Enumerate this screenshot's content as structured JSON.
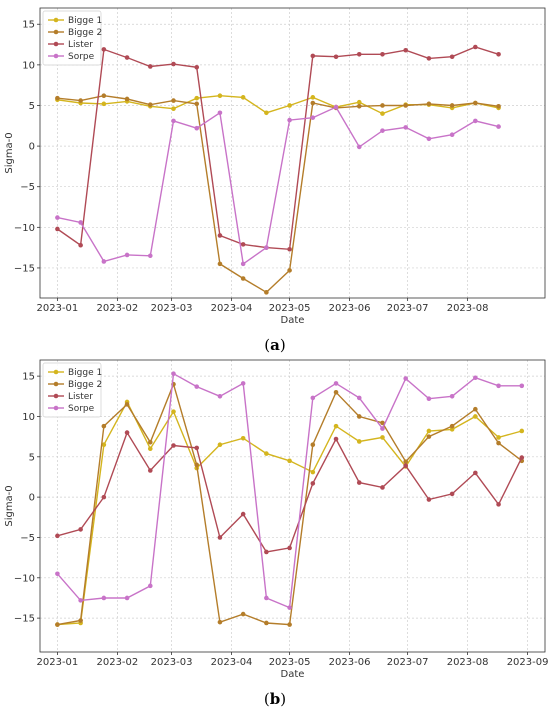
{
  "chart_data": [
    {
      "type": "line",
      "caption": "(a)",
      "xlabel": "Date",
      "ylabel": "Sigma-0",
      "xlim": [
        "2022-12-23",
        "2023-09-10"
      ],
      "ylim": [
        -18.7,
        17
      ],
      "xticks": [
        "2023-01-01",
        "2023-02-01",
        "2023-03-01",
        "2023-04-01",
        "2023-05-01",
        "2023-06-01",
        "2023-07-01",
        "2023-08-01"
      ],
      "xtick_labels": [
        "2023-01",
        "2023-02",
        "2023-03",
        "2023-04",
        "2023-05",
        "2023-06",
        "2023-07",
        "2023-08"
      ],
      "yticks": [
        -15,
        -10,
        -5,
        0,
        5,
        10,
        15
      ],
      "ytick_labels": [
        "−15",
        "−10",
        "−5",
        "0",
        "5",
        "10",
        "15"
      ],
      "grid": true,
      "legend_position": "top-left",
      "x": [
        "2023-01-01",
        "2023-01-13",
        "2023-01-25",
        "2023-02-06",
        "2023-02-18",
        "2023-03-02",
        "2023-03-14",
        "2023-03-26",
        "2023-04-07",
        "2023-04-19",
        "2023-05-01",
        "2023-05-13",
        "2023-05-25",
        "2023-06-06",
        "2023-06-18",
        "2023-06-30",
        "2023-07-12",
        "2023-07-24",
        "2023-08-05",
        "2023-08-17"
      ],
      "series": [
        {
          "name": "Bigge 1",
          "color": "#d4b51e",
          "values": [
            5.7,
            5.3,
            5.2,
            5.5,
            4.9,
            4.6,
            5.9,
            6.2,
            6.0,
            4.1,
            5.0,
            6.0,
            4.8,
            5.4,
            4.0,
            5.1,
            5.1,
            4.7,
            5.3,
            4.7
          ]
        },
        {
          "name": "Bigge 2",
          "color": "#b47d2a",
          "values": [
            5.9,
            5.6,
            6.2,
            5.8,
            5.1,
            5.6,
            5.2,
            -14.5,
            -16.3,
            -18.0,
            -15.3,
            5.3,
            4.7,
            4.9,
            5.0,
            5.0,
            5.2,
            5.0,
            5.3,
            4.9
          ]
        },
        {
          "name": "Lister",
          "color": "#b04a55",
          "values": [
            -10.2,
            -12.2,
            11.9,
            10.9,
            9.8,
            10.1,
            9.7,
            -11.0,
            -12.1,
            -12.5,
            -12.7,
            11.1,
            11.0,
            11.3,
            11.3,
            11.8,
            10.8,
            11.0,
            12.2,
            11.3
          ]
        },
        {
          "name": "Sorpe",
          "color": "#c873c8",
          "values": [
            -8.8,
            -9.4,
            -14.2,
            -13.4,
            -13.5,
            3.1,
            2.2,
            4.1,
            -14.5,
            -12.5,
            3.2,
            3.5,
            4.8,
            -0.1,
            1.9,
            2.3,
            0.9,
            1.4,
            3.1,
            2.4
          ]
        }
      ]
    },
    {
      "type": "line",
      "caption": "(b)",
      "xlabel": "Date",
      "ylabel": "Sigma-0",
      "xlim": [
        "2022-12-23",
        "2023-09-10"
      ],
      "ylim": [
        -19.2,
        17
      ],
      "xticks": [
        "2023-01-01",
        "2023-02-01",
        "2023-03-01",
        "2023-04-01",
        "2023-05-01",
        "2023-06-01",
        "2023-07-01",
        "2023-08-01",
        "2023-09-01"
      ],
      "xtick_labels": [
        "2023-01",
        "2023-02",
        "2023-03",
        "2023-04",
        "2023-05",
        "2023-06",
        "2023-07",
        "2023-08",
        "2023-09"
      ],
      "yticks": [
        -15,
        -10,
        -5,
        0,
        5,
        10,
        15
      ],
      "ytick_labels": [
        "−15",
        "−10",
        "−5",
        "0",
        "5",
        "10",
        "15"
      ],
      "grid": true,
      "legend_position": "top-left",
      "x": [
        "2023-01-01",
        "2023-01-13",
        "2023-01-25",
        "2023-02-06",
        "2023-02-18",
        "2023-03-02",
        "2023-03-14",
        "2023-03-26",
        "2023-04-07",
        "2023-04-19",
        "2023-05-01",
        "2023-05-13",
        "2023-05-25",
        "2023-06-06",
        "2023-06-18",
        "2023-06-30",
        "2023-07-12",
        "2023-07-24",
        "2023-08-05",
        "2023-08-17",
        "2023-08-29"
      ],
      "series": [
        {
          "name": "Bigge 1",
          "color": "#d4b51e",
          "values": [
            -15.8,
            -15.6,
            6.5,
            11.8,
            6.0,
            10.6,
            3.6,
            6.5,
            7.3,
            5.4,
            4.5,
            3.1,
            8.8,
            6.9,
            7.4,
            3.8,
            8.2,
            8.4,
            10.0,
            7.4,
            8.2
          ]
        },
        {
          "name": "Bigge 2",
          "color": "#b47d2a",
          "values": [
            -15.8,
            -15.3,
            8.8,
            11.5,
            6.8,
            14.0,
            4.0,
            -15.5,
            -14.5,
            -15.6,
            -15.8,
            6.5,
            13.0,
            10.0,
            9.2,
            4.4,
            7.5,
            8.8,
            10.9,
            6.7,
            4.5
          ]
        },
        {
          "name": "Lister",
          "color": "#b04a55",
          "values": [
            -4.8,
            -4.0,
            0.0,
            8.0,
            3.3,
            6.4,
            6.1,
            -5.0,
            -2.1,
            -6.8,
            -6.3,
            1.7,
            7.2,
            1.8,
            1.2,
            3.9,
            -0.3,
            0.4,
            3.0,
            -0.9,
            4.9
          ]
        },
        {
          "name": "Sorpe",
          "color": "#c873c8",
          "values": [
            -9.5,
            -12.8,
            -12.5,
            -12.5,
            -11.0,
            15.3,
            13.7,
            12.5,
            14.1,
            -12.5,
            -13.7,
            12.3,
            14.1,
            12.3,
            8.5,
            14.7,
            12.2,
            12.5,
            14.8,
            13.8,
            13.8
          ]
        }
      ]
    }
  ]
}
